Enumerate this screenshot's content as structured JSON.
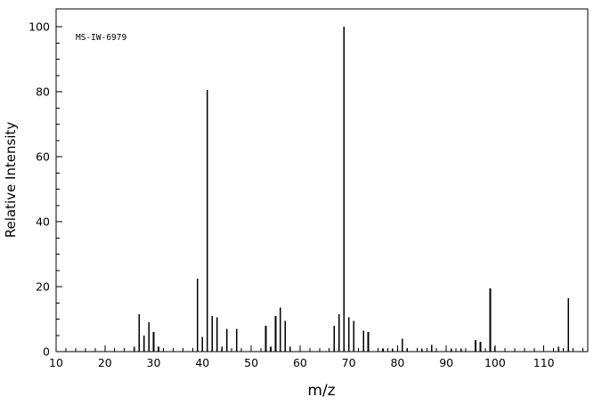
{
  "chart": {
    "annotation": "MS-IW-6979",
    "xlabel": "m/z",
    "ylabel": "Relative Intensity"
  },
  "chart_data": {
    "type": "bar",
    "subtype": "mass-spectrum",
    "title": "MS-IW-6979",
    "xlabel": "m/z",
    "ylabel": "Relative Intensity",
    "xlim": [
      10,
      119
    ],
    "ylim": [
      0,
      100
    ],
    "xticks_major": [
      10,
      20,
      30,
      40,
      50,
      60,
      70,
      80,
      90,
      100,
      110
    ],
    "xtick_minor_step": 2,
    "yticks_major": [
      0,
      20,
      40,
      60,
      80,
      100
    ],
    "ytick_minor_step": 5,
    "grid": false,
    "legend": false,
    "bar_color": "#000000",
    "peaks": [
      [
        26,
        1.5
      ],
      [
        27,
        11.5
      ],
      [
        28,
        5
      ],
      [
        29,
        9
      ],
      [
        30,
        6
      ],
      [
        31,
        1.5
      ],
      [
        39,
        22.5
      ],
      [
        40,
        4.5
      ],
      [
        41,
        80.5
      ],
      [
        42,
        11
      ],
      [
        43,
        10.5
      ],
      [
        44,
        1.5
      ],
      [
        45,
        7
      ],
      [
        47,
        7
      ],
      [
        53,
        8
      ],
      [
        54,
        1.5
      ],
      [
        55,
        11
      ],
      [
        56,
        13.5
      ],
      [
        57,
        9.5
      ],
      [
        58,
        1.5
      ],
      [
        67,
        8
      ],
      [
        68,
        11.5
      ],
      [
        69,
        100
      ],
      [
        70,
        10.5
      ],
      [
        71,
        9.5
      ],
      [
        73,
        6.5
      ],
      [
        74,
        6
      ],
      [
        77,
        1
      ],
      [
        79,
        1
      ],
      [
        81,
        4
      ],
      [
        82,
        1
      ],
      [
        85,
        1
      ],
      [
        87,
        2
      ],
      [
        91,
        1
      ],
      [
        93,
        1
      ],
      [
        96,
        3.5
      ],
      [
        97,
        3
      ],
      [
        99,
        19.5
      ],
      [
        100,
        1.5
      ],
      [
        113,
        1.5
      ],
      [
        115,
        16.5
      ]
    ]
  }
}
